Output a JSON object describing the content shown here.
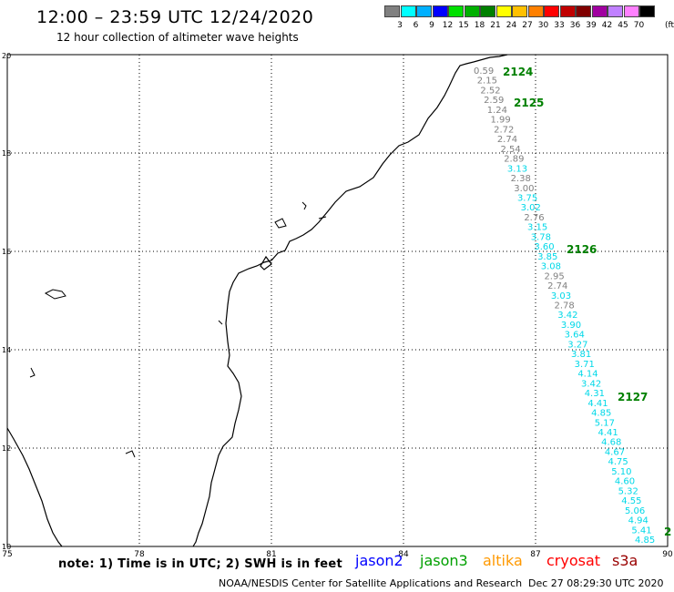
{
  "header": {
    "title": "12:00 – 23:59 UTC 12/24/2020",
    "subtitle": "12 hour collection of altimeter wave heights"
  },
  "legend": {
    "colors": [
      "#808080",
      "#00ffff",
      "#00b0ff",
      "#0000ff",
      "#00e000",
      "#00b000",
      "#008000",
      "#ffff00",
      "#ffc000",
      "#ff8000",
      "#ff0000",
      "#c00000",
      "#800000",
      "#a000a0",
      "#c080ff",
      "#ff80ff",
      "#000000"
    ],
    "labels": [
      "3",
      "6",
      "9",
      "12",
      "15",
      "18",
      "21",
      "24",
      "27",
      "30",
      "33",
      "36",
      "39",
      "42",
      "45",
      "70"
    ],
    "unit": "(ft)"
  },
  "axes": {
    "x_ticks": [
      "75",
      "78",
      "81",
      "84",
      "87",
      "90"
    ],
    "y_ticks": [
      "20",
      "18",
      "16",
      "14",
      "12",
      "10"
    ]
  },
  "passes": [
    "2124",
    "2125",
    "2126",
    "2127",
    "2"
  ],
  "wave_heights": [
    {
      "v": "0.59",
      "c": "#808080"
    },
    {
      "v": "2.15",
      "c": "#808080"
    },
    {
      "v": "2.52",
      "c": "#808080"
    },
    {
      "v": "2.59",
      "c": "#808080"
    },
    {
      "v": "1.24",
      "c": "#808080"
    },
    {
      "v": "1.99",
      "c": "#808080"
    },
    {
      "v": "2.72",
      "c": "#808080"
    },
    {
      "v": "2.74",
      "c": "#808080"
    },
    {
      "v": "2.54",
      "c": "#808080"
    },
    {
      "v": "2.89",
      "c": "#808080"
    },
    {
      "v": "3.13",
      "c": "#00d8e8"
    },
    {
      "v": "2.38",
      "c": "#808080"
    },
    {
      "v": "3.00",
      "c": "#808080"
    },
    {
      "v": "3.75",
      "c": "#00d8e8"
    },
    {
      "v": "3.02",
      "c": "#00d8e8"
    },
    {
      "v": "2.76",
      "c": "#808080"
    },
    {
      "v": "3.15",
      "c": "#00d8e8"
    },
    {
      "v": "3.78",
      "c": "#00d8e8"
    },
    {
      "v": "3.60",
      "c": "#00d8e8"
    },
    {
      "v": "3.85",
      "c": "#00d8e8"
    },
    {
      "v": "3.08",
      "c": "#00d8e8"
    },
    {
      "v": "2.95",
      "c": "#808080"
    },
    {
      "v": "2.74",
      "c": "#808080"
    },
    {
      "v": "3.03",
      "c": "#00d8e8"
    },
    {
      "v": "2.78",
      "c": "#808080"
    },
    {
      "v": "3.42",
      "c": "#00d8e8"
    },
    {
      "v": "3.90",
      "c": "#00d8e8"
    },
    {
      "v": "3.64",
      "c": "#00d8e8"
    },
    {
      "v": "3.27",
      "c": "#00d8e8"
    },
    {
      "v": "3.81",
      "c": "#00d8e8"
    },
    {
      "v": "3.71",
      "c": "#00d8e8"
    },
    {
      "v": "4.14",
      "c": "#00d8e8"
    },
    {
      "v": "3.42",
      "c": "#00d8e8"
    },
    {
      "v": "4.31",
      "c": "#00d8e8"
    },
    {
      "v": "4.41",
      "c": "#00d8e8"
    },
    {
      "v": "4.85",
      "c": "#00d8e8"
    },
    {
      "v": "5.17",
      "c": "#00d8e8"
    },
    {
      "v": "4.41",
      "c": "#00d8e8"
    },
    {
      "v": "4.68",
      "c": "#00d8e8"
    },
    {
      "v": "4.67",
      "c": "#00d8e8"
    },
    {
      "v": "4.75",
      "c": "#00d8e8"
    },
    {
      "v": "5.10",
      "c": "#00d8e8"
    },
    {
      "v": "4.60",
      "c": "#00d8e8"
    },
    {
      "v": "5.32",
      "c": "#00d8e8"
    },
    {
      "v": "4.55",
      "c": "#00d8e8"
    },
    {
      "v": "5.06",
      "c": "#00d8e8"
    },
    {
      "v": "4.94",
      "c": "#00d8e8"
    },
    {
      "v": "5.41",
      "c": "#00d8e8"
    },
    {
      "v": "4.85",
      "c": "#00d8e8"
    }
  ],
  "footer": {
    "note": "note: 1) Time is in UTC; 2) SWH is in feet",
    "satellites": [
      {
        "name": "jason2",
        "color": "#0000ff"
      },
      {
        "name": "jason3",
        "color": "#00a000"
      },
      {
        "name": "altika",
        "color": "#ff9900"
      },
      {
        "name": "cryosat",
        "color": "#ff0000"
      },
      {
        "name": "s3a",
        "color": "#990000"
      }
    ],
    "credit": "NOAA/NESDIS Center for Satellite Applications and Research",
    "timestamp": "Dec 27 08:29:30 UTC 2020"
  }
}
